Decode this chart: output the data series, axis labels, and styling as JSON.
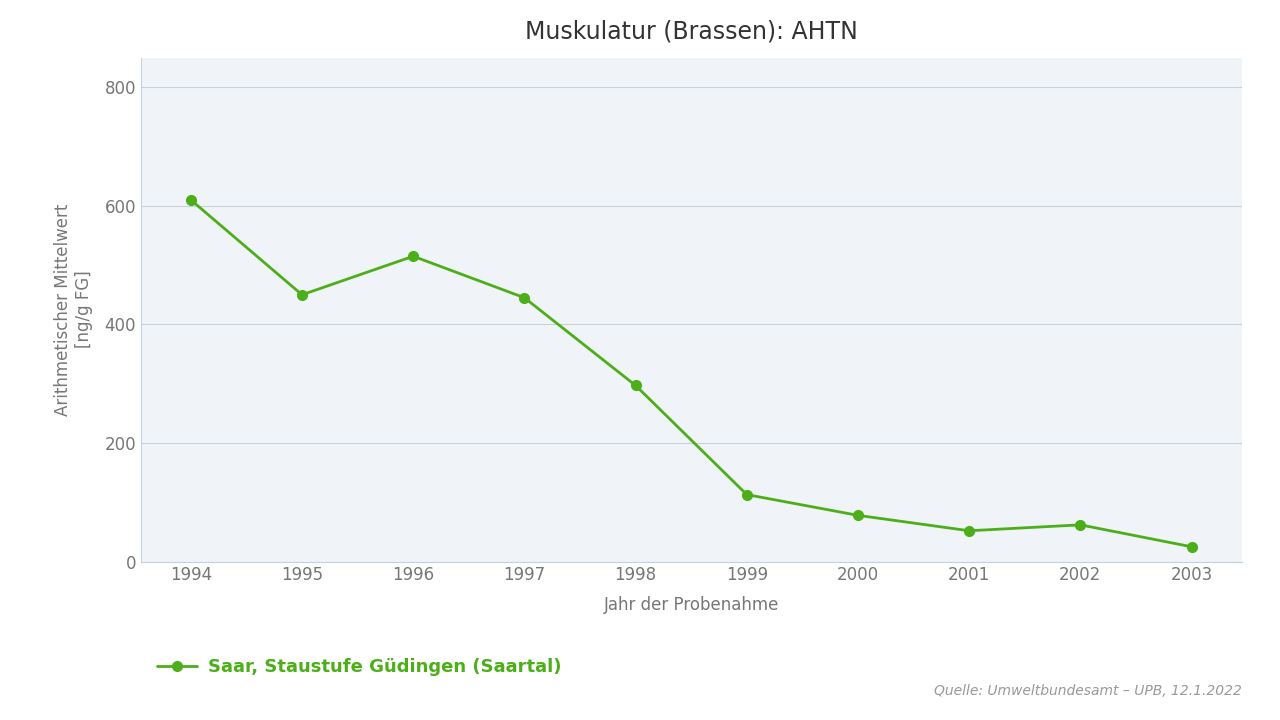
{
  "title": "Muskulatur (Brassen): AHTN",
  "xlabel": "Jahr der Probenahme",
  "ylabel": "Arithmetischer Mittelwert\n[ng/g FG]",
  "x": [
    1994,
    1995,
    1996,
    1997,
    1998,
    1999,
    2000,
    2001,
    2002,
    2003
  ],
  "y": [
    610,
    450,
    515,
    445,
    297,
    113,
    78,
    52,
    62,
    25
  ],
  "line_color": "#4caf1a",
  "marker": "o",
  "marker_size": 7,
  "line_width": 2.0,
  "ylim": [
    0,
    850
  ],
  "yticks": [
    0,
    200,
    400,
    600,
    800
  ],
  "legend_label": "Saar, Staustufe Güdingen (Saartal)",
  "source_text": "Quelle: Umweltbundesamt – UPB, 12.1.2022",
  "background_color": "#ffffff",
  "plot_bg_color": "#f0f4f8",
  "grid_color": "#c8d0da",
  "spine_color": "#c8d0da",
  "tick_color": "#777777",
  "title_fontsize": 17,
  "label_fontsize": 12,
  "tick_fontsize": 12,
  "legend_fontsize": 13,
  "source_fontsize": 10,
  "source_color": "#999999"
}
